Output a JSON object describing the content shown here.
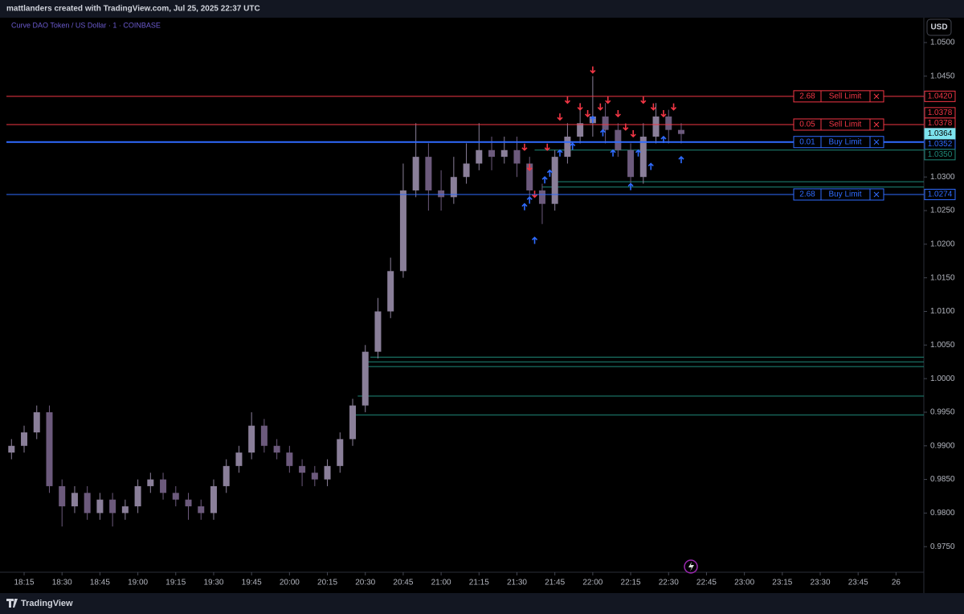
{
  "header": "mattlanders created with TradingView.com, Jul 25, 2025 22:37 UTC",
  "legend": "Curve DAO Token / US Dollar · 1 · COINBASE",
  "currency": "USD",
  "logo": "TradingView",
  "chart_data": {
    "type": "candlestick",
    "colors": {
      "up": "#8a7f99",
      "down": "#6c5a7c",
      "buy": "#2f6bff",
      "sell": "#f23645",
      "level": "#1f8a7a"
    },
    "xlim": [
      "18:08",
      "00:11"
    ],
    "ylim": [
      0.9712,
      1.0537
    ],
    "xticks": [
      "18:15",
      "18:30",
      "18:45",
      "19:00",
      "19:15",
      "19:30",
      "19:45",
      "20:00",
      "20:15",
      "20:30",
      "20:45",
      "21:00",
      "21:15",
      "21:30",
      "21:45",
      "22:00",
      "22:15",
      "22:30",
      "22:45",
      "23:00",
      "23:15",
      "23:30",
      "23:45",
      "26"
    ],
    "yticks": [
      {
        "value": 1.05,
        "label": "1.0500"
      },
      {
        "value": 1.045,
        "label": "1.0450"
      },
      {
        "value": 1.03,
        "label": "1.0300"
      },
      {
        "value": 1.025,
        "label": "1.0250"
      },
      {
        "value": 1.02,
        "label": "1.0200"
      },
      {
        "value": 1.015,
        "label": "1.0150"
      },
      {
        "value": 1.01,
        "label": "1.0100"
      },
      {
        "value": 1.005,
        "label": "1.0050"
      },
      {
        "value": 1,
        "label": "1.0000"
      },
      {
        "value": 0.995,
        "label": "0.9950"
      },
      {
        "value": 0.99,
        "label": "0.9900"
      },
      {
        "value": 0.985,
        "label": "0.9850"
      },
      {
        "value": 0.98,
        "label": "0.9800"
      },
      {
        "value": 0.975,
        "label": "0.9750"
      }
    ],
    "x": [
      "18:10",
      "18:15",
      "18:20",
      "18:25",
      "18:30",
      "18:35",
      "18:40",
      "18:45",
      "18:50",
      "18:55",
      "19:00",
      "19:05",
      "19:10",
      "19:15",
      "19:20",
      "19:25",
      "19:30",
      "19:35",
      "19:40",
      "19:45",
      "19:50",
      "19:55",
      "20:00",
      "20:05",
      "20:10",
      "20:15",
      "20:20",
      "20:25",
      "20:30",
      "20:35",
      "20:40",
      "20:45",
      "20:50",
      "20:55",
      "21:00",
      "21:05",
      "21:10",
      "21:15",
      "21:20",
      "21:25",
      "21:30",
      "21:35",
      "21:40",
      "21:45",
      "21:50",
      "21:55",
      "22:00",
      "22:05",
      "22:10",
      "22:15",
      "22:20",
      "22:25",
      "22:30",
      "22:35"
    ],
    "open": [
      0.989,
      0.99,
      0.992,
      0.995,
      0.984,
      0.981,
      0.983,
      0.98,
      0.982,
      0.98,
      0.981,
      0.984,
      0.985,
      0.983,
      0.982,
      0.981,
      0.98,
      0.984,
      0.987,
      0.989,
      0.993,
      0.99,
      0.989,
      0.987,
      0.986,
      0.985,
      0.987,
      0.991,
      0.996,
      1.004,
      1.01,
      1.016,
      1.028,
      1.033,
      1.028,
      1.027,
      1.03,
      1.032,
      1.034,
      1.033,
      1.034,
      1.032,
      1.028,
      1.026,
      1.033,
      1.036,
      1.038,
      1.039,
      1.037,
      1.034,
      1.03,
      1.036,
      1.039,
      1.037
    ],
    "high": [
      0.991,
      0.993,
      0.996,
      0.996,
      0.985,
      0.984,
      0.984,
      0.983,
      0.983,
      0.982,
      0.985,
      0.986,
      0.986,
      0.984,
      0.983,
      0.982,
      0.985,
      0.988,
      0.99,
      0.995,
      0.994,
      0.991,
      0.99,
      0.988,
      0.987,
      0.988,
      0.992,
      0.997,
      1.005,
      1.012,
      1.018,
      1.032,
      1.038,
      1.035,
      1.031,
      1.033,
      1.035,
      1.038,
      1.036,
      1.036,
      1.036,
      1.033,
      1.029,
      1.034,
      1.038,
      1.041,
      1.045,
      1.041,
      1.038,
      1.035,
      1.038,
      1.041,
      1.04,
      1.038
    ],
    "low": [
      0.988,
      0.989,
      0.991,
      0.983,
      0.978,
      0.98,
      0.979,
      0.979,
      0.978,
      0.979,
      0.98,
      0.983,
      0.982,
      0.981,
      0.979,
      0.979,
      0.979,
      0.983,
      0.986,
      0.988,
      0.989,
      0.988,
      0.986,
      0.984,
      0.984,
      0.984,
      0.986,
      0.99,
      0.995,
      1.003,
      1.009,
      1.015,
      1.027,
      1.025,
      1.025,
      1.026,
      1.029,
      1.031,
      1.031,
      1.032,
      1.03,
      1.026,
      1.023,
      1.025,
      1.032,
      1.035,
      1.036,
      1.035,
      1.033,
      1.029,
      1.029,
      1.035,
      1.035,
      1.035
    ],
    "close": [
      0.99,
      0.992,
      0.995,
      0.984,
      0.981,
      0.983,
      0.98,
      0.982,
      0.98,
      0.981,
      0.984,
      0.985,
      0.983,
      0.982,
      0.981,
      0.98,
      0.984,
      0.987,
      0.989,
      0.993,
      0.99,
      0.989,
      0.987,
      0.986,
      0.985,
      0.987,
      0.991,
      0.996,
      1.004,
      1.01,
      1.016,
      1.028,
      1.033,
      1.028,
      1.027,
      1.03,
      1.032,
      1.034,
      1.033,
      1.034,
      1.032,
      1.028,
      1.026,
      1.033,
      1.036,
      1.038,
      1.039,
      1.037,
      1.034,
      1.03,
      1.036,
      1.039,
      1.037,
      1.0364
    ],
    "sell_markers": {
      "x": [
        "21:33",
        "21:35",
        "21:37",
        "21:42",
        "21:47",
        "21:50",
        "21:55",
        "21:58",
        "22:00",
        "22:03",
        "22:06",
        "22:10",
        "22:13",
        "22:16",
        "22:20",
        "22:24",
        "22:28",
        "22:32"
      ],
      "y": [
        1.034,
        1.031,
        1.027,
        1.034,
        1.0385,
        1.041,
        1.04,
        1.039,
        1.0455,
        1.04,
        1.041,
        1.039,
        1.037,
        1.036,
        1.041,
        1.04,
        1.039,
        1.04
      ]
    },
    "buy_markers": {
      "x": [
        "21:33",
        "21:35",
        "21:37",
        "21:41",
        "21:43",
        "21:47",
        "21:52",
        "22:00",
        "22:04",
        "22:08",
        "22:15",
        "22:18",
        "22:23",
        "22:28",
        "22:35"
      ],
      "y": [
        1.026,
        1.027,
        1.021,
        1.03,
        1.031,
        1.034,
        1.035,
        1.039,
        1.037,
        1.034,
        1.029,
        1.034,
        1.032,
        1.036,
        1.033
      ]
    },
    "levels": [
      {
        "start": "21:37",
        "value": 1.034
      },
      {
        "start": "21:44",
        "value": 1.0293
      },
      {
        "start": "21:40",
        "value": 1.0285
      },
      {
        "start": "20:32",
        "value": 1.0032
      },
      {
        "start": "20:31",
        "value": 1.0025
      },
      {
        "start": "20:29",
        "value": 1.0018
      },
      {
        "start": "20:27",
        "value": 0.9974
      },
      {
        "start": "20:26",
        "value": 0.9946
      }
    ],
    "orders": [
      {
        "side": "sell",
        "qty": 2.68,
        "label": "Sell Limit",
        "price": {
          "value": 1.042,
          "label": "1.0420"
        }
      },
      {
        "side": "sell",
        "qty": 0.05,
        "label": "Sell Limit",
        "price": {
          "value": 1.0378,
          "label": "1.0378"
        }
      },
      {
        "side": "buy",
        "qty": 0.01,
        "label": "Buy Limit",
        "price": {
          "value": 1.0352,
          "label": "1.0352"
        }
      },
      {
        "side": "buy",
        "qty": 2.68,
        "label": "Buy Limit",
        "price": {
          "value": 1.0274,
          "label": "1.0274"
        }
      }
    ],
    "axis_tags": [
      {
        "value": 1.0378,
        "label": "1.0378",
        "color": "#f23645"
      },
      {
        "value": 1.0364,
        "label": "1.0364",
        "color": "#7de3ee"
      },
      {
        "value": 1.035,
        "label": "1.0350",
        "color": "#1f8a7a"
      }
    ]
  }
}
